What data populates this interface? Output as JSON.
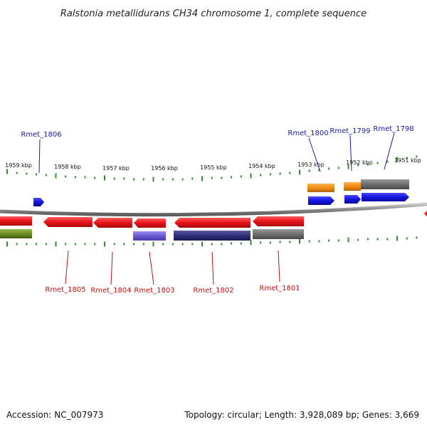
{
  "title": "Ralstonia metallidurans CH34 chromosome 1, complete sequence",
  "ticks": [
    "1959 kbp",
    "1958 kbp",
    "1957 kbp",
    "1956 kbp",
    "1955 kbp",
    "1954 kbp",
    "1953 kbp",
    "1952 kbp",
    "1951 kbp"
  ],
  "gene_labels_top": [
    "Rmet_1806",
    "Rmet_1800",
    "Rmet_1799",
    "Rmet_1798"
  ],
  "gene_labels_bottom": [
    "Rmet_1805",
    "Rmet_1804",
    "Rmet_1803",
    "Rmet_1802",
    "Rmet_1801"
  ],
  "colors": {
    "backbone": "#8a8a8a",
    "tick": "#2e8b2e",
    "red_feature": "#e8131a",
    "blue_feature": "#1414e0",
    "orange_feature": "#f08a10",
    "gray_feature": "#6e6e6e",
    "olive_feature": "#6b8e23",
    "lavender_feature": "#6a5acd",
    "navy_feature": "#2e2e7a"
  },
  "footer": {
    "accession": "Accession: NC_007973",
    "summary": "Topology: circular; Length: 3,928,089 bp; Genes: 3,669"
  }
}
